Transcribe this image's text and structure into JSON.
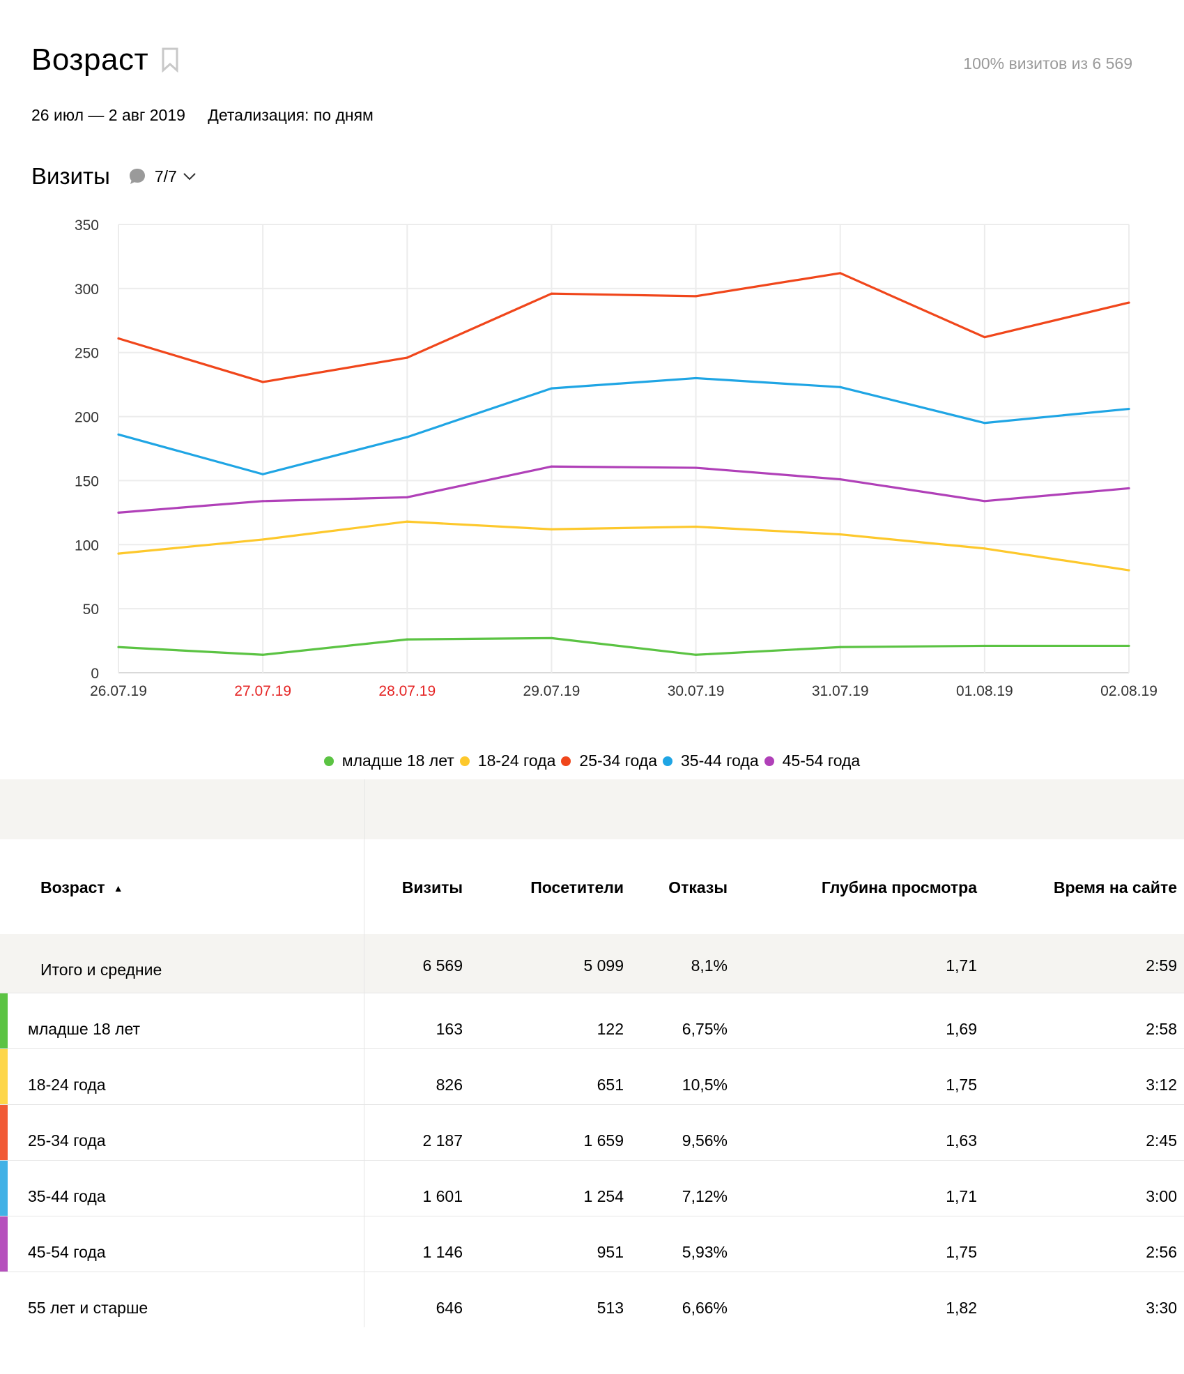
{
  "header": {
    "title": "Возраст",
    "share": "100% визитов из 6 569",
    "date_range": "26 июл — 2 авг 2019",
    "detail": "Детализация: по дням"
  },
  "metric": {
    "title": "Визиты",
    "selected": "7/7"
  },
  "chart_data": {
    "type": "line",
    "x": [
      "26.07.19",
      "27.07.19",
      "28.07.19",
      "29.07.19",
      "30.07.19",
      "31.07.19",
      "01.08.19",
      "02.08.19"
    ],
    "x_label_colors": [
      "#333333",
      "#e52525",
      "#e52525",
      "#333333",
      "#333333",
      "#333333",
      "#333333",
      "#333333"
    ],
    "ylim": [
      0,
      350
    ],
    "yticks": [
      0,
      50,
      100,
      150,
      200,
      250,
      300,
      350
    ],
    "grid": true,
    "series": [
      {
        "name": "младше 18 лет",
        "color": "#5bc343",
        "values": [
          20,
          14,
          26,
          27,
          14,
          20,
          21,
          21
        ]
      },
      {
        "name": "18-24 года",
        "color": "#fdc82c",
        "values": [
          93,
          104,
          118,
          112,
          114,
          108,
          97,
          80
        ]
      },
      {
        "name": "25-34 года",
        "color": "#f0461b",
        "values": [
          261,
          227,
          246,
          296,
          294,
          312,
          262,
          289
        ]
      },
      {
        "name": "35-44 года",
        "color": "#1fa5e4",
        "values": [
          186,
          155,
          184,
          222,
          230,
          223,
          195,
          206
        ]
      },
      {
        "name": "45-54 года",
        "color": "#b040b8",
        "values": [
          125,
          134,
          137,
          161,
          160,
          151,
          134,
          144
        ]
      }
    ]
  },
  "legend": [
    {
      "label": "младше 18 лет",
      "color": "#5bc343"
    },
    {
      "label": "18-24 года",
      "color": "#fdc82c"
    },
    {
      "label": "25-34 года",
      "color": "#f0461b"
    },
    {
      "label": "35-44 года",
      "color": "#1fa5e4"
    },
    {
      "label": "45-54 года",
      "color": "#b040b8"
    }
  ],
  "table": {
    "columns": [
      "Возраст",
      "Визиты",
      "Посетители",
      "Отказы",
      "Глубина просмотра",
      "Время на сайте"
    ],
    "sort_indicator": "▲",
    "total": {
      "label": "Итого и средние",
      "cells": [
        "6 569",
        "5 099",
        "8,1%",
        "1,71",
        "2:59"
      ]
    },
    "rows": [
      {
        "label": "младше 18 лет",
        "color": "#5bc343",
        "cells": [
          "163",
          "122",
          "6,75%",
          "1,69",
          "2:58"
        ]
      },
      {
        "label": "18-24 года",
        "color": "#fdd64a",
        "cells": [
          "826",
          "651",
          "10,5%",
          "1,75",
          "3:12"
        ]
      },
      {
        "label": "25-34 года",
        "color": "#f15a36",
        "cells": [
          "2 187",
          "1 659",
          "9,56%",
          "1,63",
          "2:45"
        ]
      },
      {
        "label": "35-44 года",
        "color": "#41b1e6",
        "cells": [
          "1 601",
          "1 254",
          "7,12%",
          "1,71",
          "3:00"
        ]
      },
      {
        "label": "45-54 года",
        "color": "#b650bd",
        "cells": [
          "1 146",
          "951",
          "5,93%",
          "1,75",
          "2:56"
        ]
      },
      {
        "label": "55 лет и старше",
        "color": "",
        "cells": [
          "646",
          "513",
          "6,66%",
          "1,82",
          "3:30"
        ]
      }
    ]
  }
}
